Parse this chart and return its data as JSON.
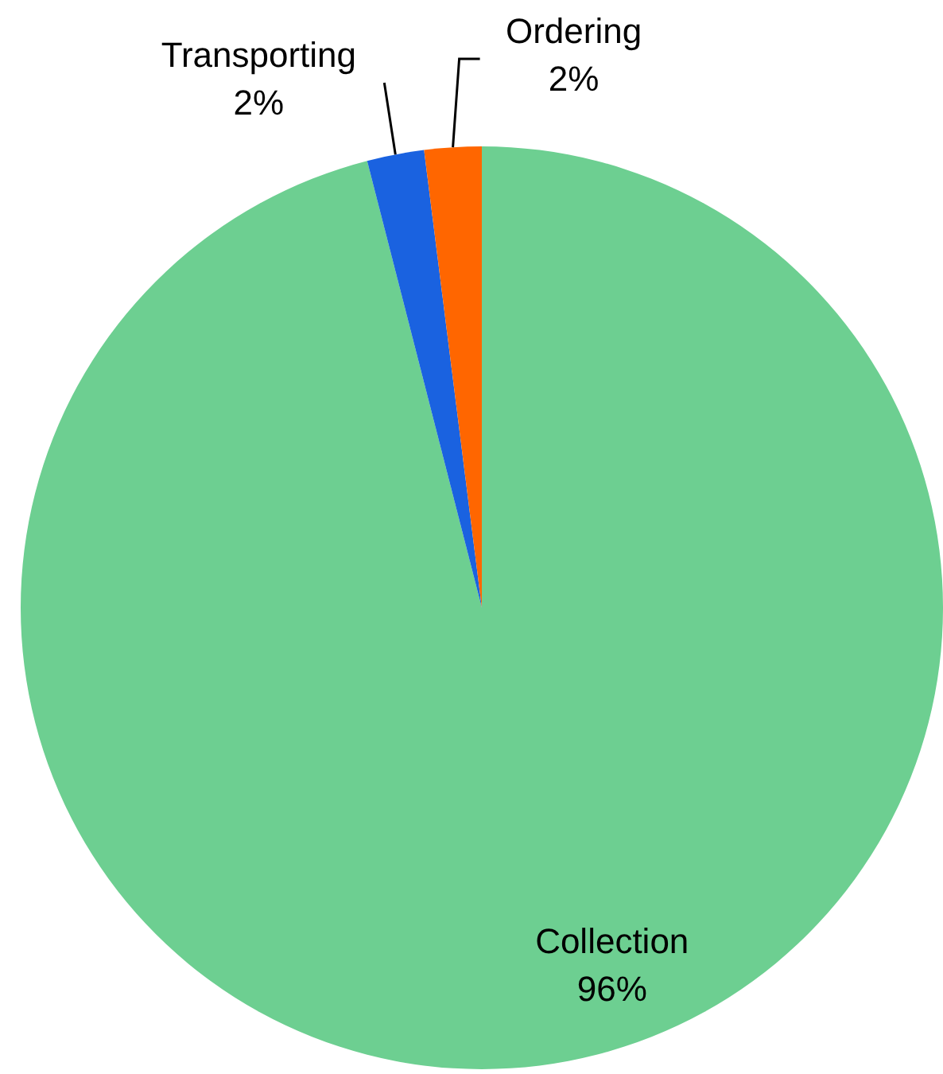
{
  "chart_data": {
    "type": "pie",
    "categories": [
      "Collection",
      "Transporting",
      "Ordering"
    ],
    "values": [
      96,
      2,
      2
    ],
    "value_labels": [
      "96%",
      "2%",
      "2%"
    ],
    "colors": [
      "#6dcf91",
      "#1a62e0",
      "#ff6600"
    ]
  }
}
